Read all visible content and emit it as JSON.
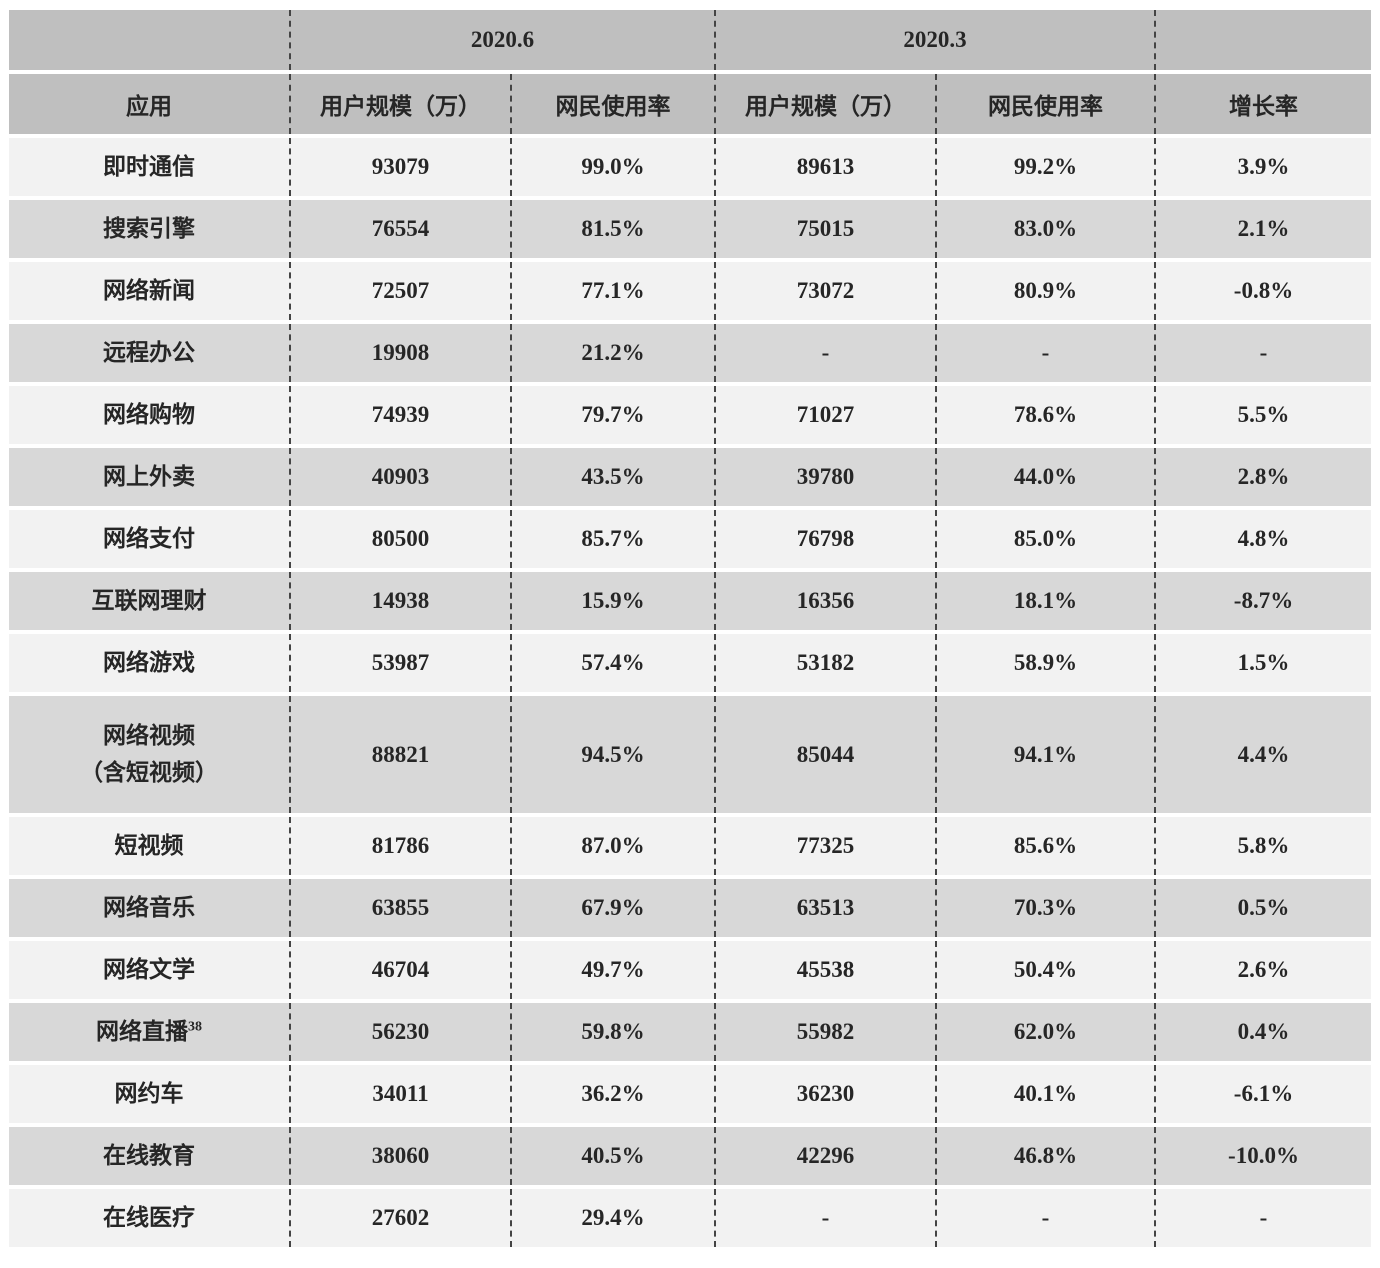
{
  "table": {
    "groups": {
      "left_blank": "",
      "period_1": "2020.6",
      "period_2": "2020.3",
      "right_blank": ""
    },
    "columns": [
      "应用",
      "用户规模（万）",
      "网民使用率",
      "用户规模（万）",
      "网民使用率",
      "增长率"
    ],
    "rows": [
      {
        "app": "即时通信",
        "u6": "93079",
        "r6": "99.0%",
        "u3": "89613",
        "r3": "99.2%",
        "g": "3.9%"
      },
      {
        "app": "搜索引擎",
        "u6": "76554",
        "r6": "81.5%",
        "u3": "75015",
        "r3": "83.0%",
        "g": "2.1%"
      },
      {
        "app": "网络新闻",
        "u6": "72507",
        "r6": "77.1%",
        "u3": "73072",
        "r3": "80.9%",
        "g": "-0.8%"
      },
      {
        "app": "远程办公",
        "u6": "19908",
        "r6": "21.2%",
        "u3": "-",
        "r3": "-",
        "g": "-"
      },
      {
        "app": "网络购物",
        "u6": "74939",
        "r6": "79.7%",
        "u3": "71027",
        "r3": "78.6%",
        "g": "5.5%"
      },
      {
        "app": "网上外卖",
        "u6": "40903",
        "r6": "43.5%",
        "u3": "39780",
        "r3": "44.0%",
        "g": "2.8%"
      },
      {
        "app": "网络支付",
        "u6": "80500",
        "r6": "85.7%",
        "u3": "76798",
        "r3": "85.0%",
        "g": "4.8%"
      },
      {
        "app": "互联网理财",
        "u6": "14938",
        "r6": "15.9%",
        "u3": "16356",
        "r3": "18.1%",
        "g": "-8.7%"
      },
      {
        "app": "网络游戏",
        "u6": "53987",
        "r6": "57.4%",
        "u3": "53182",
        "r3": "58.9%",
        "g": "1.5%"
      },
      {
        "app": "网络视频",
        "app_line2": "（含短视频）",
        "tall": true,
        "u6": "88821",
        "r6": "94.5%",
        "u3": "85044",
        "r3": "94.1%",
        "g": "4.4%"
      },
      {
        "app": "短视频",
        "u6": "81786",
        "r6": "87.0%",
        "u3": "77325",
        "r3": "85.6%",
        "g": "5.8%"
      },
      {
        "app": "网络音乐",
        "u6": "63855",
        "r6": "67.9%",
        "u3": "63513",
        "r3": "70.3%",
        "g": "0.5%"
      },
      {
        "app": "网络文学",
        "u6": "46704",
        "r6": "49.7%",
        "u3": "45538",
        "r3": "50.4%",
        "g": "2.6%"
      },
      {
        "app": "网络直播",
        "app_sup": "38",
        "u6": "56230",
        "r6": "59.8%",
        "u3": "55982",
        "r3": "62.0%",
        "g": "0.4%"
      },
      {
        "app": "网约车",
        "u6": "34011",
        "r6": "36.2%",
        "u3": "36230",
        "r3": "40.1%",
        "g": "-6.1%"
      },
      {
        "app": "在线教育",
        "u6": "38060",
        "r6": "40.5%",
        "u3": "42296",
        "r3": "46.8%",
        "g": "-10.0%"
      },
      {
        "app": "在线医疗",
        "u6": "27602",
        "r6": "29.4%",
        "u3": "-",
        "r3": "-",
        "g": "-"
      }
    ],
    "colors": {
      "header_bg": "#bfbfbf",
      "row_light_bg": "#f2f2f2",
      "row_dark_bg": "#d8d8d8",
      "text": "#262626",
      "divider": "#444444"
    }
  }
}
